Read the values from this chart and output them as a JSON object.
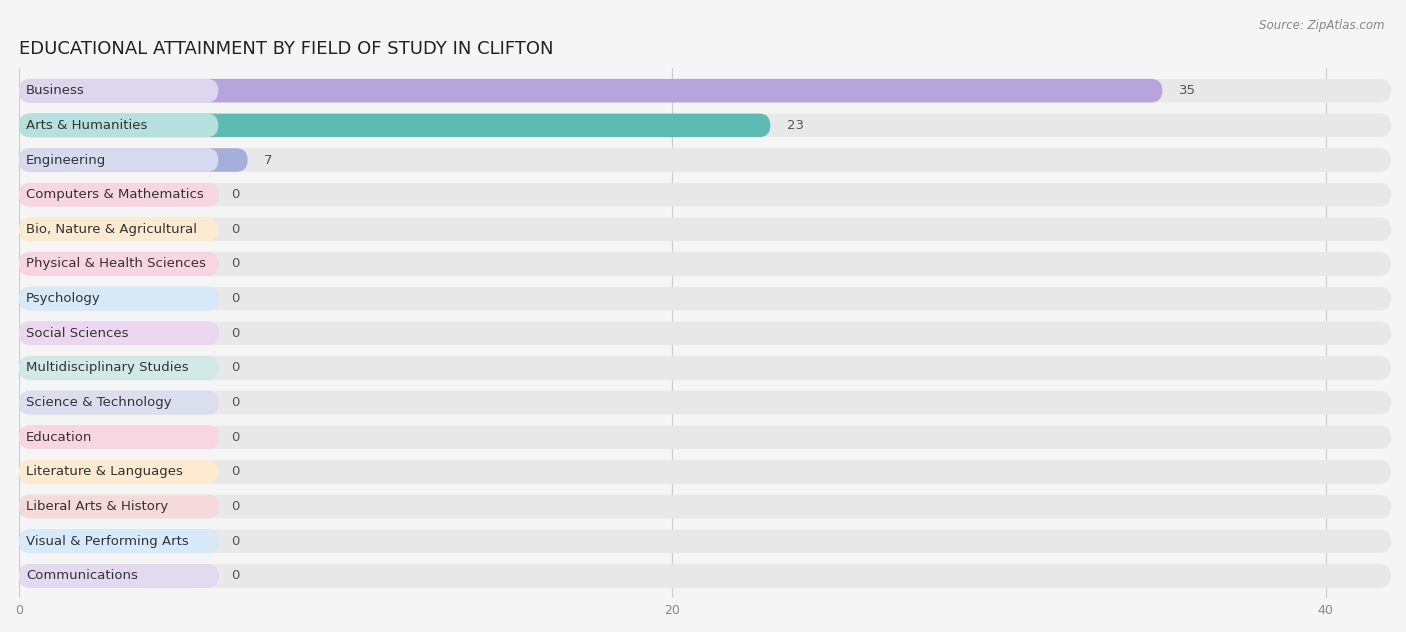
{
  "title": "EDUCATIONAL ATTAINMENT BY FIELD OF STUDY IN CLIFTON",
  "source": "Source: ZipAtlas.com",
  "categories": [
    "Business",
    "Arts & Humanities",
    "Engineering",
    "Computers & Mathematics",
    "Bio, Nature & Agricultural",
    "Physical & Health Sciences",
    "Psychology",
    "Social Sciences",
    "Multidisciplinary Studies",
    "Science & Technology",
    "Education",
    "Literature & Languages",
    "Liberal Arts & History",
    "Visual & Performing Arts",
    "Communications"
  ],
  "values": [
    35,
    23,
    7,
    0,
    0,
    0,
    0,
    0,
    0,
    0,
    0,
    0,
    0,
    0,
    0
  ],
  "bar_colors": [
    "#b39ddb",
    "#4db6ac",
    "#9fa8da",
    "#f48fb1",
    "#ffcc80",
    "#f48fb1",
    "#90caf9",
    "#ce93d8",
    "#80cbc4",
    "#9fa8da",
    "#f48fb1",
    "#ffcc80",
    "#ef9a9a",
    "#90caf9",
    "#b39ddb"
  ],
  "xlim_max": 42,
  "xticks": [
    0,
    20,
    40
  ],
  "background_color": "#f5f5f5",
  "row_bg_color": "#e8e8e8",
  "row_sep_color": "#ffffff",
  "title_fontsize": 13,
  "label_fontsize": 9.5,
  "value_fontsize": 9.5
}
